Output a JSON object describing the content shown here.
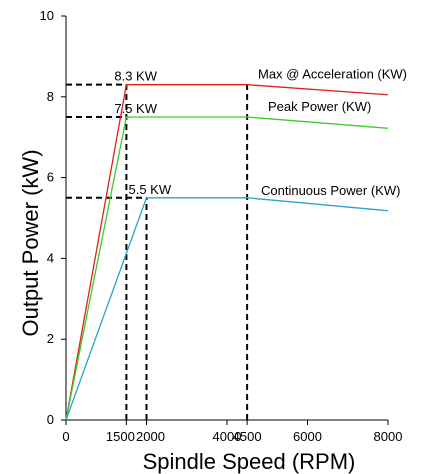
{
  "chart_data": {
    "type": "line",
    "title": "",
    "xlabel": "Spindle Speed (RPM)",
    "ylabel": "Output Power (kW)",
    "xlim": [
      0,
      8000
    ],
    "ylim": [
      0,
      10
    ],
    "xticks": [
      0,
      2000,
      4000,
      6000,
      8000
    ],
    "extra_xticks": [
      1500,
      4500
    ],
    "yticks": [
      0,
      2,
      4,
      6,
      8,
      10
    ],
    "grid": false,
    "series": [
      {
        "name": "Max @ Acceleration (KW)",
        "color": "#e0201b",
        "points": [
          [
            0,
            0
          ],
          [
            1500,
            8.3
          ],
          [
            4500,
            8.3
          ],
          [
            8000,
            8.05
          ]
        ]
      },
      {
        "name": "Peak Power (KW)",
        "color": "#3ccc2a",
        "points": [
          [
            0,
            0
          ],
          [
            1500,
            7.5
          ],
          [
            4500,
            7.5
          ],
          [
            8000,
            7.22
          ]
        ]
      },
      {
        "name": "Continuous Power (KW)",
        "color": "#29a3cc",
        "points": [
          [
            0,
            0
          ],
          [
            2000,
            5.5
          ],
          [
            4500,
            5.5
          ],
          [
            8000,
            5.18
          ]
        ]
      }
    ],
    "annotations": [
      {
        "text": "8.3 KW",
        "x": 1500,
        "y": 8.3
      },
      {
        "text": "7.5 KW",
        "x": 1500,
        "y": 7.5
      },
      {
        "text": "5.5 KW",
        "x": 2000,
        "y": 5.5
      }
    ],
    "reference_lines": {
      "horizontal": [
        {
          "y": 8.3,
          "x_to": 1500
        },
        {
          "y": 7.5,
          "x_to": 1500
        },
        {
          "y": 5.5,
          "x_to": 2000
        }
      ],
      "vertical": [
        {
          "x": 1500,
          "y_to": 8.3
        },
        {
          "x": 2000,
          "y_to": 5.5
        },
        {
          "x": 4500,
          "y_to": 8.3
        }
      ]
    }
  }
}
